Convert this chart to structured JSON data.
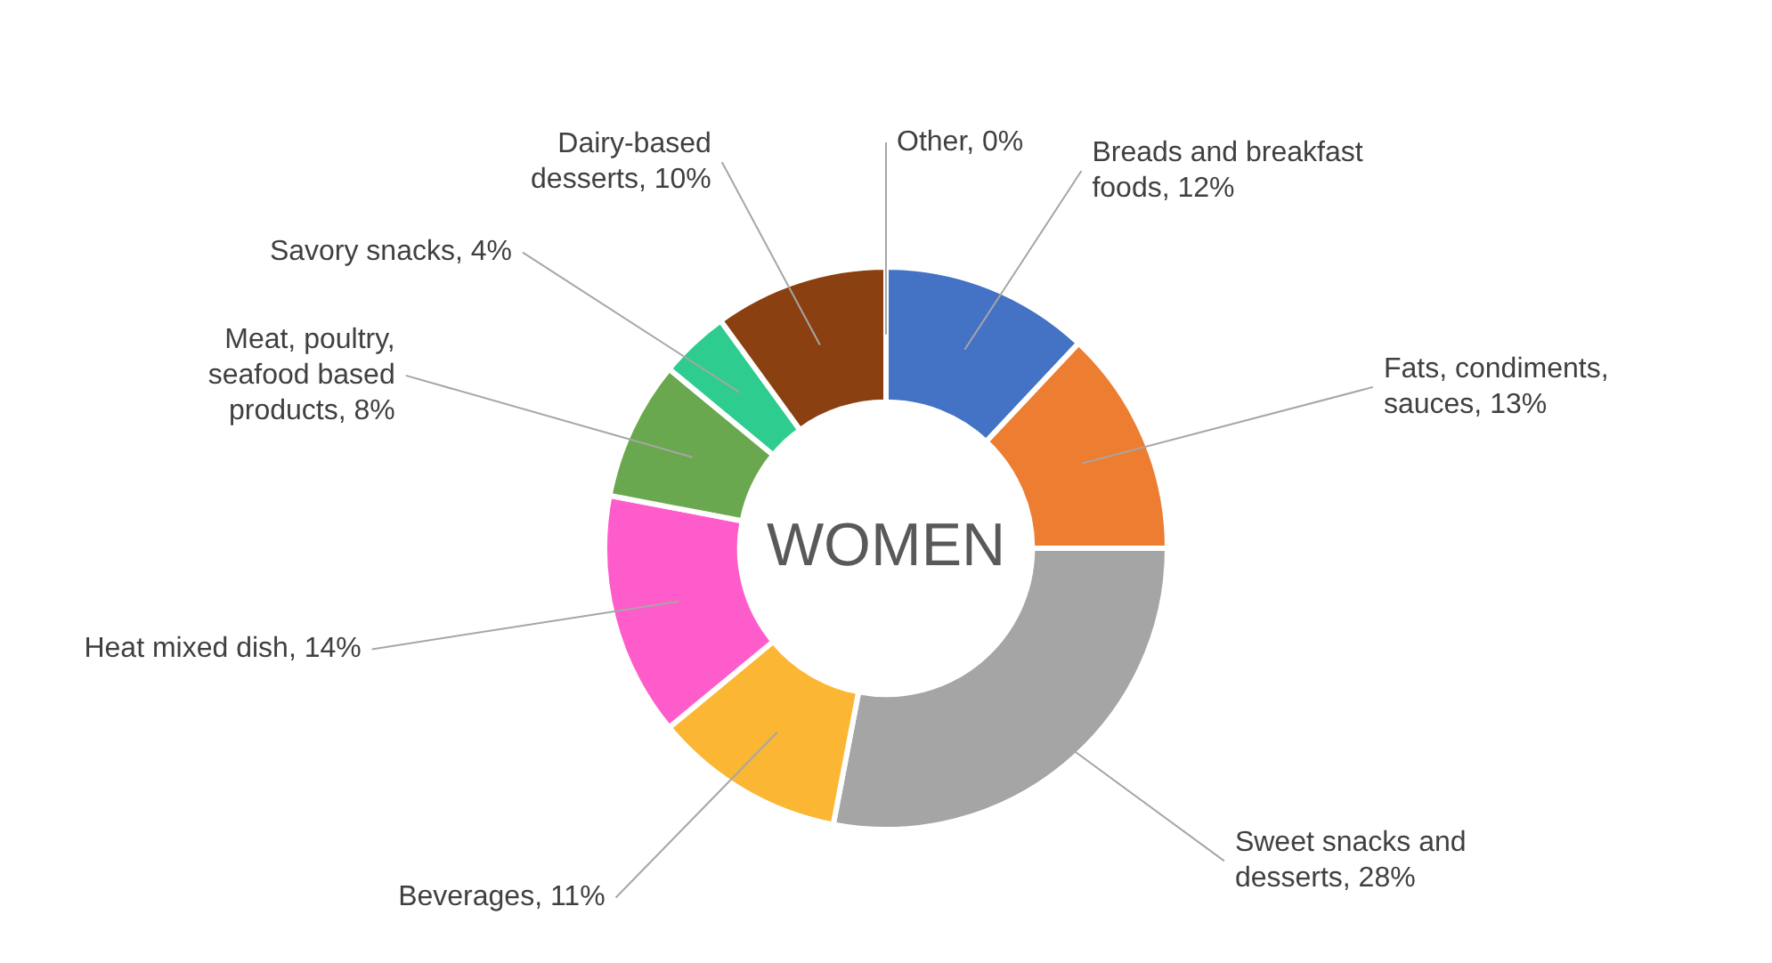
{
  "chart_data": {
    "type": "donut",
    "title": "WOMEN",
    "categories": [
      "Breads and breakfast foods, 12%",
      "Fats, condiments, sauces, 13%",
      "Sweet snacks and desserts, 28%",
      "Beverages, 11%",
      "Heat mixed dish, 14%",
      "Meat, poultry, seafood based products, 8%",
      "Savory snacks, 4%",
      "Dairy-based desserts, 10%",
      "Other, 0%"
    ],
    "values": [
      12,
      13,
      28,
      11,
      14,
      8,
      4,
      10,
      0
    ],
    "colors": [
      "#4472c4",
      "#ed7d31",
      "#a5a5a5",
      "#fbb633",
      "#ff5ccb",
      "#6aa84f",
      "#2ecc8f",
      "#8b4011",
      "#5b9bd5"
    ]
  }
}
